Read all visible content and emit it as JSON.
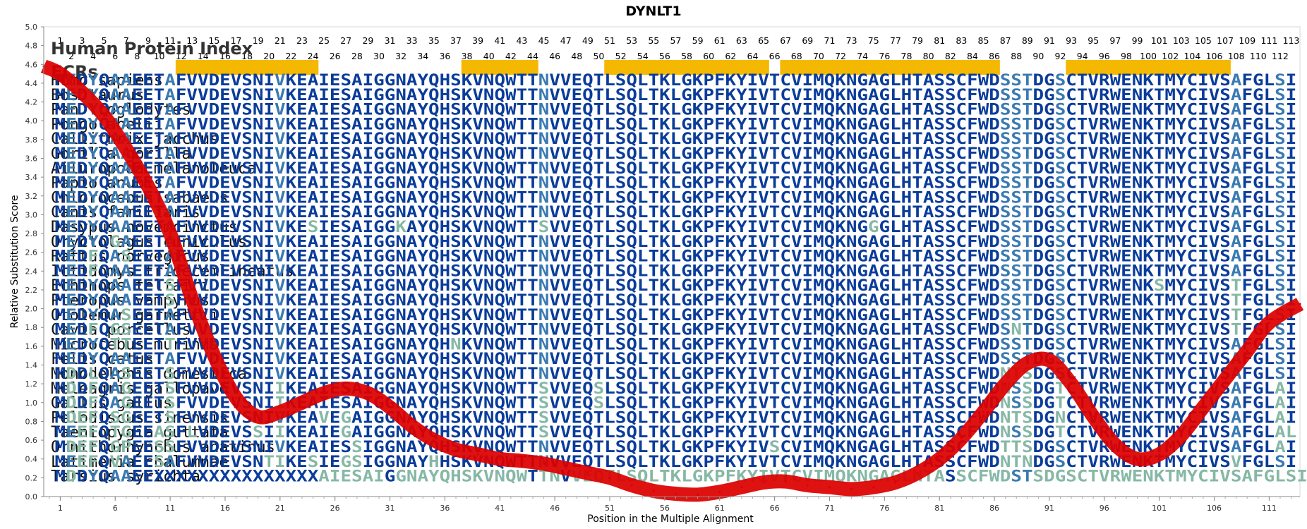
{
  "chart_data": {
    "type": "line",
    "title": "DYNLT1",
    "xlabel": "Position in the Multiple Alignment",
    "ylabel": "Relative Substitution Score",
    "xlim": [
      -0.5,
      113.8
    ],
    "ylim": [
      0.0,
      5.0
    ],
    "y_ticks": [
      "0.0",
      "0.2",
      "0.4",
      "0.6",
      "0.8",
      "1.0",
      "1.2",
      "1.4",
      "1.6",
      "1.8",
      "2.0",
      "2.2",
      "2.4",
      "2.6",
      "2.8",
      "3.0",
      "3.2",
      "3.4",
      "3.6",
      "3.8",
      "4.0",
      "4.2",
      "4.4",
      "4.6",
      "4.8",
      "5.0"
    ],
    "x_ticks": [
      1,
      6,
      11,
      16,
      21,
      26,
      31,
      36,
      41,
      46,
      51,
      56,
      61,
      66,
      71,
      76,
      81,
      86,
      91,
      96,
      101,
      106,
      111
    ],
    "section_labels": {
      "index": "Human Protein Index",
      "ecrs": "ECRs"
    },
    "index_row1": [
      "1",
      "3",
      "5",
      "7",
      "9",
      "11",
      "13",
      "15",
      "17",
      "19",
      "21",
      "23",
      "25",
      "27",
      "29",
      "31",
      "33",
      "35",
      "37",
      "39",
      "41",
      "43",
      "45",
      "47",
      "49",
      "51",
      "53",
      "55",
      "57",
      "59",
      "61",
      "63",
      "65",
      "67",
      "69",
      "71",
      "73",
      "75",
      "77",
      "79",
      "81",
      "83",
      "85",
      "87",
      "89",
      "91",
      "93",
      "95",
      "97",
      "99",
      "101",
      "103",
      "105",
      "107",
      "109",
      "111",
      "113"
    ],
    "index_row2": [
      "2",
      "4",
      "6",
      "8",
      "10",
      "12",
      "14",
      "16",
      "18",
      "20",
      "22",
      "24",
      "26",
      "28",
      "30",
      "32",
      "34",
      "36",
      "38",
      "40",
      "42",
      "44",
      "46",
      "48",
      "50",
      "52",
      "54",
      "56",
      "58",
      "60",
      "62",
      "64",
      "66",
      "68",
      "70",
      "72",
      "74",
      "76",
      "78",
      "80",
      "82",
      "84",
      "86",
      "88",
      "90",
      "92",
      "94",
      "96",
      "98",
      "100",
      "102",
      "104",
      "106",
      "108",
      "110",
      "112"
    ],
    "ecrs": [
      [
        12,
        24
      ],
      [
        38,
        44
      ],
      [
        51,
        65
      ],
      [
        67,
        86
      ],
      [
        93,
        107
      ]
    ],
    "series": [
      {
        "color": "#dd0000",
        "x": [
          -0.5,
          1,
          3,
          5,
          7,
          9,
          11,
          13,
          15,
          17,
          19,
          21,
          23,
          25,
          27,
          29,
          31,
          33,
          35,
          37,
          39,
          41,
          43,
          45,
          47,
          49,
          51,
          53,
          55,
          57,
          59,
          61,
          63,
          65,
          67,
          69,
          71,
          73,
          75,
          77,
          79,
          81,
          83,
          85,
          87,
          89,
          91,
          93,
          95,
          97,
          99,
          101,
          103,
          105,
          107,
          109,
          111,
          113.8
        ],
        "y": [
          4.58,
          4.5,
          4.3,
          4.05,
          3.7,
          3.3,
          2.8,
          2.1,
          1.5,
          1.05,
          0.85,
          0.9,
          1.0,
          1.1,
          1.15,
          1.1,
          0.95,
          0.75,
          0.6,
          0.5,
          0.45,
          0.4,
          0.38,
          0.35,
          0.3,
          0.25,
          0.2,
          0.12,
          0.06,
          0.03,
          0.02,
          0.05,
          0.1,
          0.15,
          0.16,
          0.12,
          0.1,
          0.08,
          0.1,
          0.15,
          0.25,
          0.4,
          0.62,
          0.9,
          1.2,
          1.42,
          1.45,
          1.2,
          0.85,
          0.55,
          0.4,
          0.45,
          0.65,
          0.95,
          1.25,
          1.55,
          1.85,
          2.05
        ]
      }
    ],
    "species": [
      "Homo sapiens",
      "Bos taurus",
      "Pan troglodytes",
      "Pongo abelii",
      "Callithrix jacchus",
      "Gorilla gorilla",
      "Ailuropoda melanoleuca",
      "Papio anubis",
      "Chlorocebus sabaeus",
      "Canis familiaris",
      "Dasypus novemcinctus",
      "Oryctolagus cuniculus",
      "Rattus norvegicus",
      "Ictidomys tridecemlineatus",
      "Echinops telfairi",
      "Pteropus vampyrus",
      "Otolemur garnettii",
      "Cavia porcellus",
      "Microcebus murinus",
      "Felis catus",
      "Monodelphis domestica",
      "Meleagris gallopavo",
      "Gallus gallus",
      "Pelodiscus sinensis",
      "Taeniopygia guttata",
      "Ornithorhynchus anatinus",
      "Latimeria chalumnae",
      "Tarsius syrichta"
    ],
    "sequences": [
      "MEDYQAAEETAFVVDEVSNIVKEAIESAIGGNAYQHSKVNQWTTNVVEQTLSQLTKLGKPFKYIVTCVIMQKNGAGLHTASSCFWDSSTDGSCTVRWENKTMYCIVSAFGLSI",
      "MEDYQAAEETAFVVDEVSNIVKEAIESAIGGNAYQHSKVNQWTTNVVEQTLSQLTKLGKPFKYIVTCVIMQKNGAGLHTASSCFWDSSTDGSCTVRWENKTMYCIVSAFGLSI",
      "MEDYQAAEETAFVVDEVSNIVKEAIESAIGGNAYQHSKVNQWTTNVVEQTLSQLTKLGKPFKYIVTCVIMQKNGAGLHTASSCFWDSSTDGSCTVRWENKTMYCIVSAFGLSI",
      "MEDYQAAEETAFVVDEVSNIVKEAIESAIGGNAYQHSKVNQWTTNVVEQTLSQLTKLGKPFKYIVTCVIMQKNGAGLHTASSCFWDSSTDGSCTVRWENKTMYCIVSAFGLSI",
      "MEDYQAAEETAFVVDEVSNIVKEAIESAIGGNAYQHSKVNQWTTNVVEQTLSQLTKLGKPFKYIVTCVIMQKNGAGLHTASSCFWDSSTDGSCTVRWENKTMYCIVSAFGLSI",
      "MEDYQAAEETAFVVDEVSNIVKEAIESAIGGNAYQHSKVNQWTTNVVEQTLSQLTKLGKPFKYIVTCVIMQKNGAGLHTASSCFWDSSTDGSCTVRWENKTMYCIVSAFGLSI",
      "MEDYQAAEETAFVVDEVSNIVKEAIESAIGGNAYQHSKVNQWTTNVVEQTLSQLTKLGKPFKYIVTCVIMQKNGAGLHTASSCFWDSSTDGSCTVRWENKTMYCIVSAFGLSI",
      "MEDYQAAEETAFVVDEVSNIVKEAIESAIGGNAYQHSKVNQWTTNVVEQTLSQLTKLGKPFKYIVTCVIMQKNGAGLHTASSCFWDSSTDGSCTVRWENKTMYCIVSAFGLSI",
      "MEDYQAAEETAFVVDEVSNIVKEAIESAIGGNAYQHSKVNQWTTNVVEQTLSQLTKLGKPFKYIVTCVIMQKNGAGLHTASSCFWDSSTDGSCTVRWENKTMYCIVSAFGLSI",
      "MEDYQAAEETAFVVDEVSNIVKEAIESAIGGNAYQHSKVNQWTTNVVEQTLSQLTKLGKPFKYIVTCVIMQKNGAGLHTASSCFWDSSTDGSCTVRWENKTMYCIVSAFGLSI",
      "MEDYQAAEETAFVVDEVSNIVKESIESAIGGKAYQHSKVNQWTTSVVEQTLSQLTKLGKPFKYIVTCVIMQKNGGGLHTASSCFWDSSTDGSCTVRWENKTMYCIVSAFGLSI",
      "MEDYQGAEETAFVVDEVSNIVKEAIESAIGGNAYQHSKVNQWTTNVVEQTLSQLTKLGKPFKYIVTCVIMQKNGAGLHTASSCFWDSSTDGSCTVRWENKTMYCIVSAFGLSI",
      "MEDFQASEETAFVVDEVSNIVKEAIESAIGGNAYQHSKVNQWTTNVVEQTLSQLTKLGKPFKYIVTCVIMQKNGAGLHTASSCFWDSSTDGSCTVRWENKTMYCIVSAFGLSI",
      "MEDFQAAEETAFVVDEVSNIVKEAIESAIGGNAYQHSKVNQWTTNVVEQTLSQLTKLGKPFKYIVTCVIMQKNGAGLHTASSCFWDSSTDGSCTVRWENKTMYCIVSAFGLSI",
      "MEDYQAAEETSFVVDEVSNIVKEAIESAIGGNAYQHSKVNQWTTNVVEQTLSQLTKLGKPFKYIVTCVIMQKNGAGLHTASSCFWDSSTDGSCTVRWENKSMYCIVSTFGLSI",
      "MEDYQAAEETSFVVDEVSNIVKEAIESAIGGNAYQHSKVNQWTTNVVEQTLSQLTKLGKPFKYIVTCVIMQKNGAGLHTASSCFWDSSTDGSCTVRWENKTMYCIVSTFGLSI",
      "MEDYQASEETAFVVDEVSNIVKEAIESAIGGNAYQHSKVNQWTTNVVEQTLSQLTKLGKPFKYIVTCVIMQKNGAGLHTASSCFWDSSTDGSCTVRWENKTMYCIVSTFGLSI",
      "MEDFQGSEETAFVVDEVSNIVKEAIESAIGGNAYQHSKVNQWTTNVVEQTLSQLTKLGKPFKYIVTCVIMQKNGAGLHTASSCFWDSNTDGSCTVRWENKTMYCIVSTFGLSI",
      "MEDYQTTEETTFVVDEVSNIVKEAIESAIGGNAYQHNKVNQWTTNVVEQTLSQLTKLGKPFKYIVTCVIMQKNGAGLHTASSCFWDSSTDGSCTVRWENKTMYCIVSAFGLSI",
      "MEDYQAAEETAFVVDEVSNIVKEAIESAIGGNAYQHSKVNQWTTNVVEQTLSQLTKLGKPFKYIVTCVIMQKNGAGLHTASSCFWDSSTDGSCTVRWENKTMYCIVSAFGLSI",
      "MDDLQASEETSFVVDEVSNIVKEAIESAIGGNAYQHSKVNQWTTNVVEQTLSQLTKLGKPFKYIVTCVIMQKNGAGLHTASSCFWDNTSDGSCTVRWENKTMYCIVSAFGLSI",
      "MDDFQAGEETSFVVDEVSNIIKEAIESAIGGNAYQHSKVNQWTTSVVEQSLSQLTKLGKPFKYIVTCVIMQKNGAGLHTASSCFWDNSSDGTCTVRWENKTMYCIVSAFGLAI",
      "MDDFQAGEETSFVVDEVSNIIKEAIESAIGGNAYQHSKVNQWTTSVVEQSLSQLTKLGKPFKYIVTCVIMQKNGAGLHTASSCFWDNSSDGTCTVRWENKTMYCIVSAFGLAI",
      "MDEFQSGEETSFVVDEVSNIVKEAVEGAIGGNAYQHSKVNQWTTSVVEQTLSQLTKLGKPFKYIVTCVIMQKNGAGLHTASSCFWDNTSDGNCTVRWENKTMYCIVSAFGLAI",
      "MEEFQTGEEASFLVDEVSSIIKEAIEGAIGGNAYQHSKVNQWTTSVVEQTLSQLTKLGKPFKYIVTCVIMQKNGAGLHTASSCFWDNSSDGTCTVRWENKTMYCIVSAFGLAL",
      "MDEFQGPEESSFVVDEVSNIVKEAIESSIGGNAYQHSKVNQWTTNVVEQTLSQLTKLGKPFKYIVSCVIMQKNGAGLHTASSCFWDTTSDGSCTVRWENKTMYCIVSAFGLAI",
      "MEEFQVAEESAFVVDEVSNTIKESIEGSIGGNAYHHSKVNQWTTNVVEQTLSQLTKLGKPFKYIVTCVIMQKNGAGLHTASSCFWDNTNDGSCTVRWENKTMYCIVSVFGLSI",
      "MDDYQAAEEXXXXXXXXXXXXXXXAIESAIGGNAYQHSKVNQWTTNVVEQTLSQLTKLGKPFKYIVTCVIMQKNGAGLHTASSCFWDSTSDGSCTVRWENKTMYCIVSAFGLSI"
    ],
    "colors": {
      "conserved": "#0a3c9a",
      "partial": "#3a7ab2",
      "variable": "#86b8a6",
      "variable_light": "#c8a878",
      "ecr_bar": "#f5b800",
      "score_line": "#dd0000"
    }
  }
}
